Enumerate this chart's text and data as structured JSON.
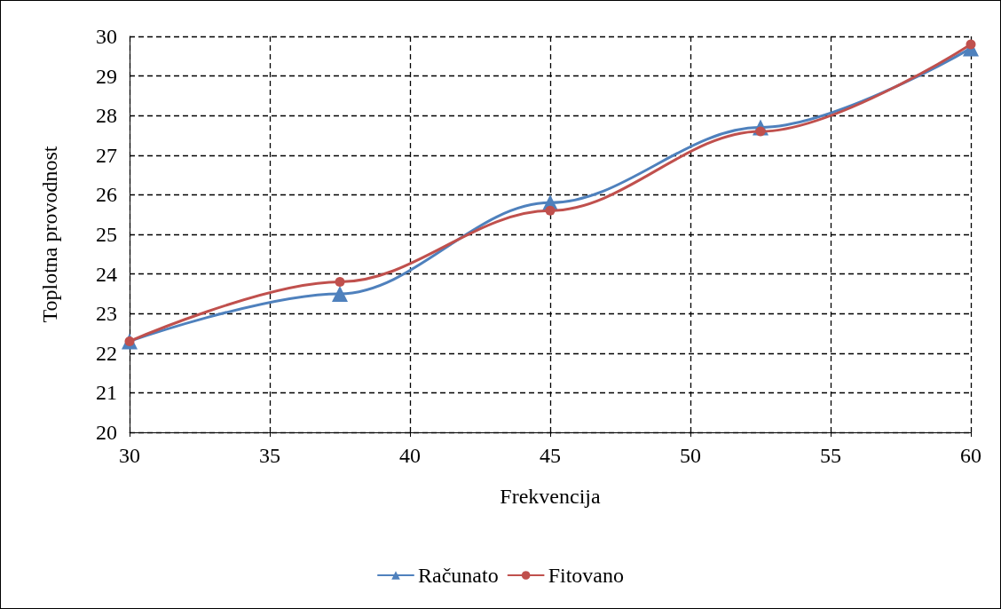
{
  "chart_data": {
    "type": "line",
    "xlabel": "Frekvencija",
    "ylabel": "Toplotna provodnost",
    "x": [
      30,
      37.5,
      45,
      52.5,
      60
    ],
    "series": [
      {
        "name": "Računato",
        "color": "#4f81bd",
        "marker": "triangle",
        "values": [
          22.3,
          23.5,
          25.8,
          27.7,
          29.7
        ]
      },
      {
        "name": "Fitovano",
        "color": "#c0504d",
        "marker": "circle",
        "values": [
          22.3,
          23.8,
          25.6,
          27.6,
          29.8
        ]
      }
    ],
    "xlim": [
      30,
      60
    ],
    "xticks": [
      30,
      35,
      40,
      45,
      50,
      55,
      60
    ],
    "ylim": [
      20,
      30
    ],
    "yticks": [
      20,
      21,
      22,
      23,
      24,
      25,
      26,
      27,
      28,
      29,
      30
    ],
    "grid": true,
    "legend": "bottom"
  }
}
